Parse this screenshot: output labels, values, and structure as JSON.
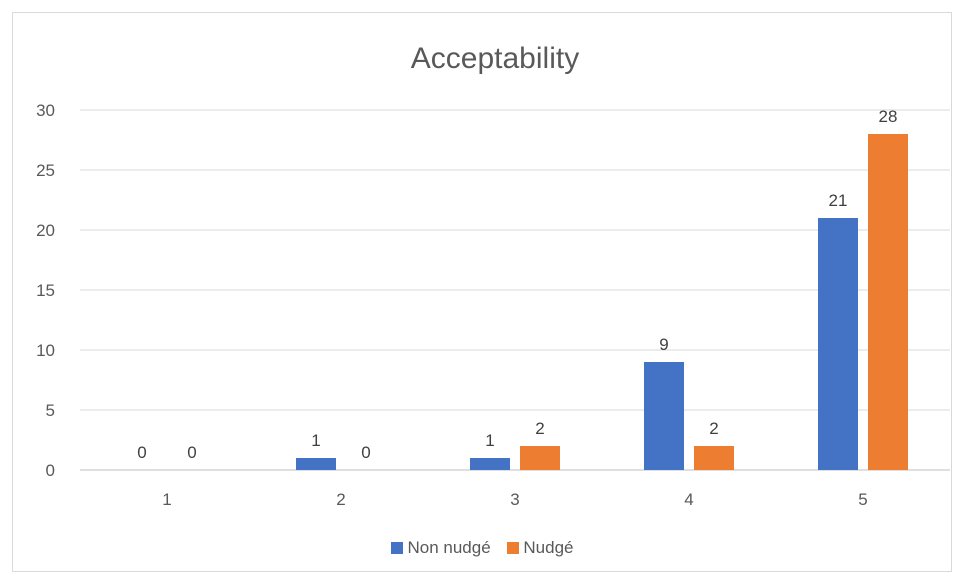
{
  "chart_data": {
    "type": "bar",
    "title": "Acceptability",
    "xlabel": "",
    "ylabel": "",
    "categories": [
      "1",
      "2",
      "3",
      "4",
      "5"
    ],
    "series": [
      {
        "name": "Non nudgé",
        "color": "#4472C4",
        "values": [
          0,
          1,
          1,
          9,
          21
        ]
      },
      {
        "name": "Nudgé",
        "color": "#ED7D31",
        "values": [
          0,
          0,
          2,
          2,
          28
        ]
      }
    ],
    "ylim": [
      0,
      30
    ],
    "yticks": [
      "0",
      "5",
      "10",
      "15",
      "20",
      "25",
      "30"
    ],
    "grid": true,
    "legend_position": "bottom"
  }
}
